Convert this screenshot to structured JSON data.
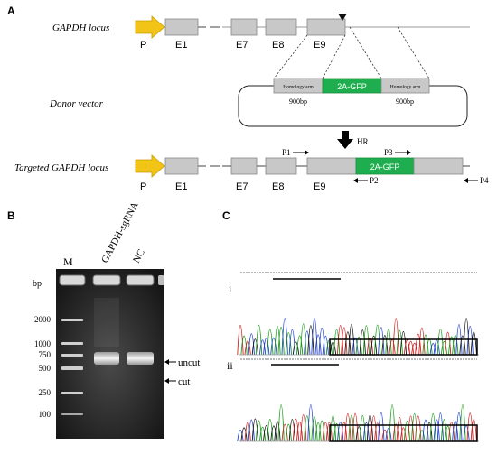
{
  "panel_a": {
    "label": "A",
    "row1": {
      "name": "GAPDH locus",
      "promoter": "P",
      "exons": [
        "E1",
        "E7",
        "E8",
        "E9"
      ]
    },
    "row2": {
      "name": "Donor vector",
      "left_arm": "Homology arm",
      "insert": "2A-GFP",
      "right_arm": "Homology arm",
      "left_size": "900bp",
      "right_size": "900bp"
    },
    "hr_label": "HR",
    "row3": {
      "name": "Targeted GAPDH locus",
      "promoter": "P",
      "exons": [
        "E1",
        "E7",
        "E8",
        "E9"
      ],
      "insert": "2A-GFP",
      "primers": [
        "P1",
        "P2",
        "P3",
        "P4"
      ]
    }
  },
  "panel_b": {
    "label": "B",
    "lanes": [
      "M",
      "GAPDH-sgRNA",
      "NC"
    ],
    "unit": "bp",
    "ladder": [
      "2000",
      "1000",
      "750",
      "500",
      "250",
      "100"
    ],
    "band_labels": [
      "uncut",
      "cut"
    ]
  },
  "panel_c": {
    "label": "C",
    "traces": [
      "i",
      "ii"
    ]
  },
  "colors": {
    "exon": "#c8c8c8",
    "promoter": "#f2c418",
    "gfp": "#1fae4f",
    "arm": "#c8c8c8"
  }
}
